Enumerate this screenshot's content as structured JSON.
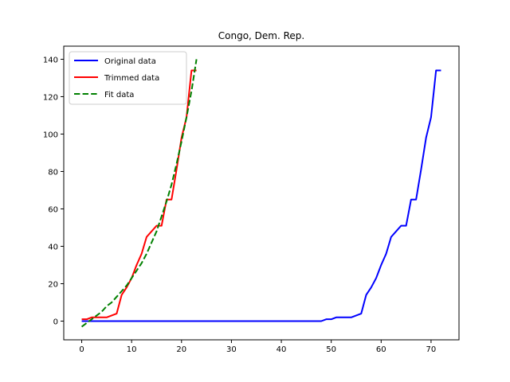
{
  "chart_data": {
    "type": "line",
    "title": "Congo, Dem. Rep.",
    "xlabel": "",
    "ylabel": "",
    "xlim": [
      -3.6,
      75.6
    ],
    "ylim": [
      -10,
      147
    ],
    "xticks": [
      0,
      10,
      20,
      30,
      40,
      50,
      60,
      70
    ],
    "yticks": [
      0,
      20,
      40,
      60,
      80,
      100,
      120,
      140
    ],
    "grid": false,
    "legend": "upper-left",
    "series": [
      {
        "name": "Original data",
        "color": "#0000ff",
        "dash": "solid",
        "x": [
          0,
          48,
          49,
          50,
          51,
          52,
          53,
          54,
          55,
          56,
          57,
          58,
          59,
          60,
          61,
          62,
          63,
          64,
          65,
          66,
          67,
          68,
          69,
          70,
          71,
          72
        ],
        "y": [
          0,
          0,
          1,
          1,
          2,
          2,
          2,
          2,
          3,
          4,
          14,
          18,
          23,
          30,
          36,
          45,
          48,
          51,
          51,
          65,
          65,
          81,
          98,
          109,
          134,
          134
        ]
      },
      {
        "name": "Trimmed data",
        "color": "#ff0000",
        "dash": "solid",
        "x": [
          0,
          1,
          2,
          3,
          4,
          5,
          6,
          7,
          8,
          9,
          10,
          11,
          12,
          13,
          14,
          15,
          16,
          17,
          18,
          19,
          20,
          21,
          22,
          23
        ],
        "y": [
          1,
          1,
          2,
          2,
          2,
          2,
          3,
          4,
          14,
          18,
          23,
          30,
          36,
          45,
          48,
          51,
          51,
          65,
          65,
          81,
          98,
          109,
          134,
          134
        ]
      },
      {
        "name": "Fit data",
        "color": "#008000",
        "dash": "dashed",
        "x": [
          0,
          1,
          2,
          3,
          4,
          5,
          6,
          7,
          8,
          9,
          10,
          11,
          12,
          13,
          14,
          15,
          16,
          17,
          18,
          19,
          20,
          21,
          22,
          23
        ],
        "y": [
          -3,
          -1,
          1,
          3,
          5,
          8,
          10,
          13,
          16,
          19,
          23,
          27,
          31,
          36,
          42,
          48,
          56,
          64,
          73,
          84,
          96,
          109,
          123,
          140
        ]
      }
    ]
  }
}
